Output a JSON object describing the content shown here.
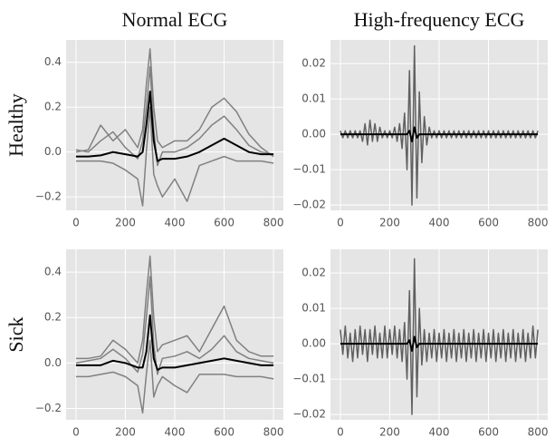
{
  "chart_data": [
    {
      "type": "line",
      "title": "Normal ECG",
      "ylabel": "Healthy",
      "xlim": [
        -40,
        840
      ],
      "ylim": [
        -0.26,
        0.5
      ],
      "xticks": [
        0,
        200,
        400,
        600,
        800
      ],
      "yticks": [
        {
          "value": -0.2,
          "label": "−0.2"
        },
        {
          "value": 0,
          "label": "0.0"
        },
        0.2,
        0.4
      ],
      "grid": true,
      "x": [
        0,
        50,
        100,
        150,
        200,
        250,
        270,
        285,
        300,
        315,
        330,
        350,
        400,
        450,
        500,
        550,
        600,
        650,
        700,
        750,
        800
      ],
      "series": [
        {
          "color": "#808080",
          "values": [
            0.0,
            0.01,
            0.12,
            0.05,
            0.1,
            0.02,
            0.1,
            0.3,
            0.46,
            0.2,
            0.05,
            0.02,
            0.05,
            0.05,
            0.1,
            0.2,
            0.24,
            0.18,
            0.08,
            0.02,
            -0.02
          ]
        },
        {
          "color": "#808080",
          "values": [
            -0.04,
            -0.04,
            -0.04,
            -0.05,
            -0.08,
            -0.12,
            -0.24,
            0.0,
            0.2,
            -0.1,
            -0.15,
            -0.2,
            -0.12,
            -0.22,
            -0.06,
            -0.04,
            -0.02,
            -0.04,
            -0.04,
            -0.04,
            -0.05
          ]
        },
        {
          "color": "#808080",
          "values": [
            0.01,
            0.0,
            0.05,
            0.09,
            0.02,
            -0.03,
            0.05,
            0.2,
            0.38,
            0.1,
            -0.06,
            0.0,
            0.0,
            0.02,
            0.06,
            0.12,
            0.16,
            0.1,
            0.03,
            0.0,
            -0.01
          ]
        },
        {
          "color": "#000000",
          "values": [
            -0.02,
            -0.02,
            -0.015,
            0.0,
            -0.01,
            -0.02,
            0.0,
            0.12,
            0.27,
            0.05,
            -0.04,
            -0.03,
            -0.03,
            -0.02,
            0.0,
            0.03,
            0.06,
            0.03,
            0.0,
            -0.01,
            -0.01
          ]
        }
      ]
    },
    {
      "type": "line",
      "title": "High-frequency ECG",
      "xlim": [
        -40,
        840
      ],
      "ylim": [
        -0.0215,
        0.0267
      ],
      "xticks": [
        0,
        200,
        400,
        600,
        800
      ],
      "yticks": [
        {
          "value": -0.02,
          "label": "−0.02"
        },
        {
          "value": -0.01,
          "label": "−0.01"
        },
        {
          "value": 0,
          "label": "0.00"
        },
        0.01,
        0.02
      ],
      "grid": true,
      "x": [
        0,
        10,
        20,
        30,
        40,
        50,
        60,
        70,
        80,
        90,
        100,
        110,
        120,
        130,
        140,
        150,
        160,
        170,
        180,
        190,
        200,
        210,
        220,
        230,
        240,
        250,
        260,
        270,
        280,
        290,
        300,
        310,
        320,
        330,
        340,
        350,
        360,
        370,
        380,
        390,
        400,
        410,
        420,
        430,
        440,
        450,
        460,
        470,
        480,
        490,
        500,
        510,
        520,
        530,
        540,
        550,
        560,
        570,
        580,
        590,
        600,
        610,
        620,
        630,
        640,
        650,
        660,
        670,
        680,
        690,
        700,
        710,
        720,
        730,
        740,
        750,
        760,
        770,
        780,
        790,
        800
      ],
      "series": [
        {
          "color": "#606060",
          "values": [
            0.001,
            -0.001,
            0.001,
            -0.001,
            0.001,
            -0.001,
            0.001,
            -0.001,
            0.001,
            -0.002,
            0.003,
            -0.003,
            0.004,
            -0.002,
            0.003,
            -0.002,
            0.002,
            -0.001,
            0.001,
            -0.001,
            0.001,
            -0.001,
            0.002,
            -0.002,
            0.003,
            -0.004,
            0.006,
            -0.01,
            0.018,
            -0.02,
            0.025,
            -0.018,
            0.012,
            -0.008,
            0.005,
            -0.003,
            0.002,
            -0.001,
            0.001,
            -0.001,
            0.001,
            -0.001,
            0.001,
            -0.001,
            0.001,
            -0.001,
            0.001,
            -0.001,
            0.001,
            -0.001,
            0.001,
            -0.001,
            0.001,
            -0.001,
            0.001,
            -0.001,
            0.001,
            -0.001,
            0.001,
            -0.001,
            0.001,
            -0.001,
            0.001,
            -0.001,
            0.001,
            -0.001,
            0.001,
            -0.001,
            0.001,
            -0.001,
            0.001,
            -0.001,
            0.001,
            -0.001,
            0.001,
            -0.001,
            0.001,
            -0.001,
            0.001,
            -0.001,
            0.001
          ]
        },
        {
          "color": "#000000",
          "values": [
            0,
            0,
            0,
            0,
            0,
            0,
            0,
            0,
            0,
            0,
            0,
            0,
            0,
            0,
            0,
            0,
            0,
            0,
            0,
            0,
            0,
            0,
            0,
            0,
            0,
            0,
            0,
            0,
            0.001,
            -0.002,
            0.002,
            -0.001,
            0,
            0,
            0,
            0,
            0,
            0,
            0,
            0,
            0,
            0,
            0,
            0,
            0,
            0,
            0,
            0,
            0,
            0,
            0,
            0,
            0,
            0,
            0,
            0,
            0,
            0,
            0,
            0,
            0,
            0,
            0,
            0,
            0,
            0,
            0,
            0,
            0,
            0,
            0,
            0,
            0,
            0,
            0,
            0,
            0,
            0,
            0,
            0,
            0
          ]
        }
      ]
    },
    {
      "type": "line",
      "ylabel": "Sick",
      "xlim": [
        -40,
        840
      ],
      "ylim": [
        -0.25,
        0.5
      ],
      "xticks": [
        0,
        200,
        400,
        600,
        800
      ],
      "yticks": [
        {
          "value": -0.2,
          "label": "−0.2"
        },
        {
          "value": 0,
          "label": "0.0"
        },
        0.2,
        0.4
      ],
      "grid": true,
      "x": [
        0,
        50,
        100,
        150,
        200,
        250,
        270,
        285,
        300,
        315,
        330,
        350,
        400,
        450,
        500,
        550,
        600,
        650,
        700,
        750,
        800
      ],
      "series": [
        {
          "color": "#808080",
          "values": [
            0.02,
            0.02,
            0.03,
            0.1,
            0.06,
            0.0,
            0.1,
            0.3,
            0.47,
            0.2,
            0.05,
            0.08,
            0.1,
            0.12,
            0.05,
            0.15,
            0.25,
            0.1,
            0.05,
            0.03,
            0.03
          ]
        },
        {
          "color": "#808080",
          "values": [
            -0.06,
            -0.06,
            -0.05,
            -0.04,
            -0.06,
            -0.1,
            -0.22,
            -0.05,
            0.1,
            -0.15,
            -0.1,
            -0.06,
            -0.1,
            -0.13,
            -0.05,
            -0.05,
            -0.05,
            -0.06,
            -0.06,
            -0.06,
            -0.07
          ]
        },
        {
          "color": "#808080",
          "values": [
            0.0,
            0.01,
            0.02,
            0.06,
            0.02,
            -0.04,
            0.04,
            0.2,
            0.38,
            0.08,
            -0.05,
            0.02,
            0.03,
            0.05,
            0.02,
            0.06,
            0.12,
            0.05,
            0.02,
            0.01,
            0.0
          ]
        },
        {
          "color": "#000000",
          "values": [
            -0.01,
            -0.01,
            -0.01,
            0.01,
            0.0,
            -0.02,
            -0.02,
            0.05,
            0.21,
            0.02,
            -0.03,
            -0.02,
            -0.02,
            -0.01,
            0.0,
            0.01,
            0.02,
            0.01,
            0.0,
            -0.01,
            -0.01
          ]
        }
      ]
    },
    {
      "type": "line",
      "xlim": [
        -40,
        840
      ],
      "ylim": [
        -0.0215,
        0.0267
      ],
      "xticks": [
        0,
        200,
        400,
        600,
        800
      ],
      "yticks": [
        {
          "value": -0.02,
          "label": "−0.02"
        },
        {
          "value": -0.01,
          "label": "−0.01"
        },
        {
          "value": 0,
          "label": "0.00"
        },
        0.01,
        0.02
      ],
      "grid": true,
      "x": [
        0,
        10,
        20,
        30,
        40,
        50,
        60,
        70,
        80,
        90,
        100,
        110,
        120,
        130,
        140,
        150,
        160,
        170,
        180,
        190,
        200,
        210,
        220,
        230,
        240,
        250,
        260,
        270,
        280,
        290,
        300,
        310,
        320,
        330,
        340,
        350,
        360,
        370,
        380,
        390,
        400,
        410,
        420,
        430,
        440,
        450,
        460,
        470,
        480,
        490,
        500,
        510,
        520,
        530,
        540,
        550,
        560,
        570,
        580,
        590,
        600,
        610,
        620,
        630,
        640,
        650,
        660,
        670,
        680,
        690,
        700,
        710,
        720,
        730,
        740,
        750,
        760,
        770,
        780,
        790,
        800
      ],
      "series": [
        {
          "color": "#606060",
          "values": [
            0.004,
            -0.003,
            0.005,
            -0.004,
            0.003,
            -0.005,
            0.004,
            -0.004,
            0.005,
            -0.003,
            0.004,
            -0.005,
            0.004,
            -0.003,
            0.005,
            -0.004,
            0.003,
            -0.004,
            0.005,
            -0.004,
            0.004,
            -0.003,
            0.005,
            -0.004,
            0.004,
            -0.005,
            0.006,
            -0.01,
            0.015,
            -0.02,
            0.024,
            -0.015,
            0.01,
            -0.006,
            0.004,
            -0.005,
            0.003,
            -0.004,
            0.004,
            -0.005,
            0.003,
            -0.004,
            0.004,
            -0.005,
            0.003,
            -0.004,
            0.004,
            -0.005,
            0.003,
            -0.004,
            0.004,
            -0.005,
            0.003,
            -0.004,
            0.004,
            -0.005,
            0.003,
            -0.004,
            0.004,
            -0.005,
            0.003,
            -0.004,
            0.004,
            -0.005,
            0.003,
            -0.004,
            0.004,
            -0.005,
            0.003,
            -0.004,
            0.004,
            -0.005,
            0.003,
            -0.004,
            0.004,
            -0.005,
            0.003,
            -0.004,
            0.005,
            -0.004,
            0.004
          ]
        },
        {
          "color": "#000000",
          "values": [
            0,
            0,
            0,
            0,
            0,
            0,
            0,
            0,
            0,
            0,
            0,
            0,
            0,
            0,
            0,
            0,
            0,
            0,
            0,
            0,
            0,
            0,
            0,
            0,
            0,
            0,
            0,
            0,
            0.001,
            -0.002,
            0.002,
            -0.001,
            0,
            0,
            0,
            0,
            0,
            0,
            0,
            0,
            0,
            0,
            0,
            0,
            0,
            0,
            0,
            0,
            0,
            0,
            0,
            0,
            0,
            0,
            0,
            0,
            0,
            0,
            0,
            0,
            0,
            0,
            0,
            0,
            0,
            0,
            0,
            0,
            0,
            0,
            0,
            0,
            0,
            0,
            0,
            0,
            0,
            0,
            0,
            0,
            0
          ]
        }
      ]
    }
  ]
}
